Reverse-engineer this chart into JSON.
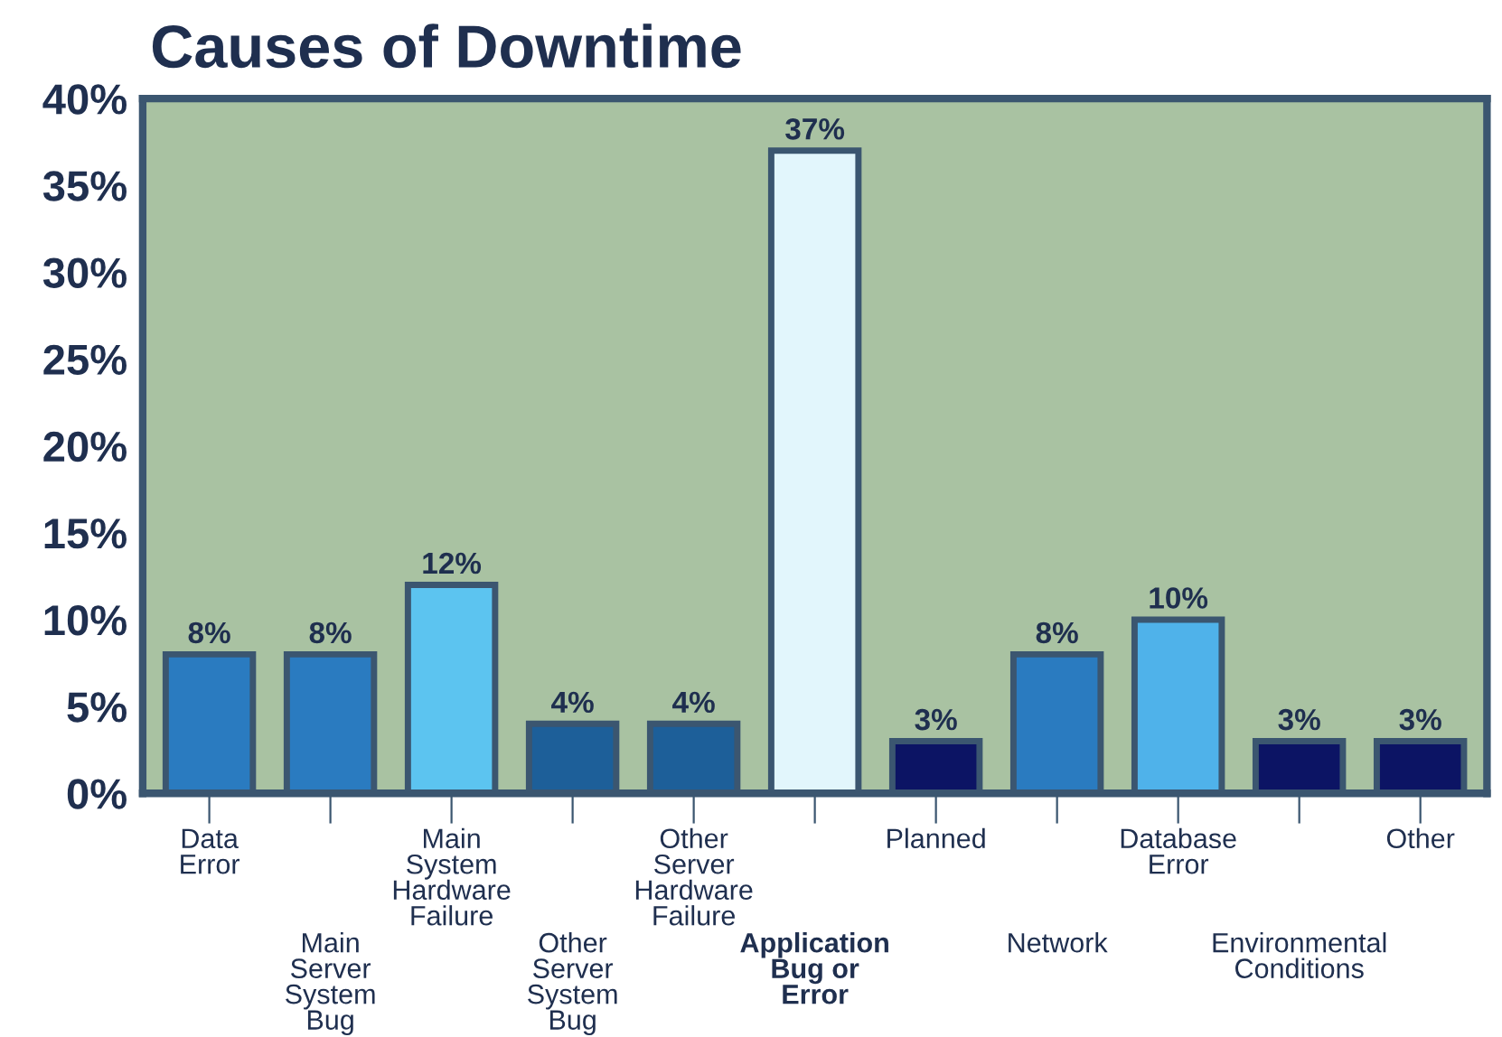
{
  "chart_data": {
    "type": "bar",
    "title": "Causes of Downtime",
    "categories": [
      "Data\nError",
      "Main\nServer\nSystem\nBug",
      "Main\nSystem\nHardware\nFailure",
      "Other\nServer\nSystem\nBug",
      "Other\nServer\nHardware\nFailure",
      "Application\nBug or\nError",
      "Planned",
      "Network",
      "Database\nError",
      "Environmental\nConditions",
      "Other"
    ],
    "values": [
      8,
      8,
      12,
      4,
      4,
      37,
      3,
      8,
      10,
      3,
      3
    ],
    "value_labels": [
      "8%",
      "8%",
      "12%",
      "4%",
      "4%",
      "37%",
      "3%",
      "8%",
      "10%",
      "3%",
      "3%"
    ],
    "colors": [
      "#2a7bc0",
      "#2a7bc0",
      "#5cc4f0",
      "#1d5f99",
      "#1d5f99",
      "#e2f6fc",
      "#0c1464",
      "#2a7bc0",
      "#4fb2ea",
      "#0c1464",
      "#0c1464"
    ],
    "ylim": [
      0,
      40
    ],
    "yticks": [
      {
        "value": 0,
        "label": "0%"
      },
      {
        "value": 5,
        "label": "5%"
      },
      {
        "value": 10,
        "label": "10%"
      },
      {
        "value": 15,
        "label": "15%"
      },
      {
        "value": 20,
        "label": "20%"
      },
      {
        "value": 25,
        "label": "25%"
      },
      {
        "value": 30,
        "label": "30%"
      },
      {
        "value": 35,
        "label": "35%"
      },
      {
        "value": 40,
        "label": "40%"
      }
    ],
    "grid": false,
    "legend": false
  }
}
